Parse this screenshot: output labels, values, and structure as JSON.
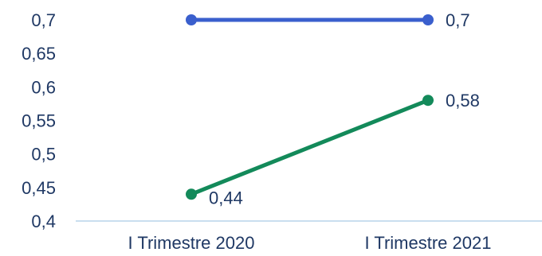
{
  "chart_data": {
    "type": "line",
    "categories": [
      "I Trimestre 2020",
      "I Trimestre 2021"
    ],
    "series": [
      {
        "values": [
          0.7,
          0.7
        ],
        "color": "#3a5fcd",
        "labels": [
          "",
          "0,7"
        ]
      },
      {
        "values": [
          0.44,
          0.58
        ],
        "color": "#138a5a",
        "labels": [
          "0,44",
          "0,58"
        ]
      }
    ],
    "ylim": [
      0.4,
      0.7
    ],
    "yticks": [
      0.4,
      0.45,
      0.5,
      0.55,
      0.6,
      0.65,
      0.7
    ],
    "ytick_labels": [
      "0,4",
      "0,45",
      "0,5",
      "0,55",
      "0,6",
      "0,65",
      "0,7"
    ],
    "grid": false,
    "axis_color": "#b7d3ea",
    "text_color": "#1f3864"
  }
}
